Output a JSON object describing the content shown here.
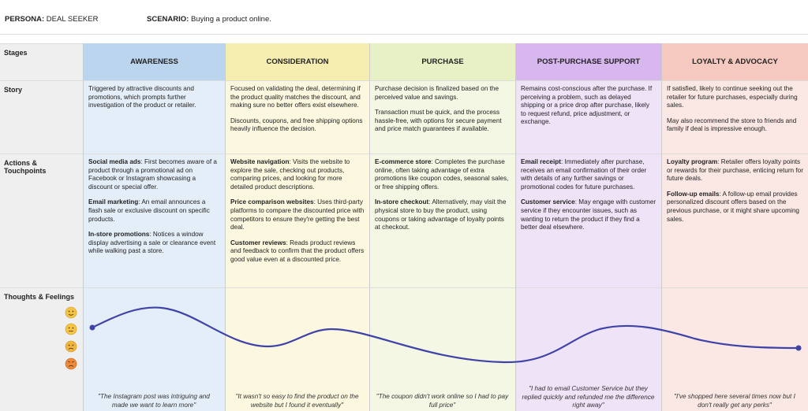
{
  "header": {
    "persona_label": "PERSONA:",
    "persona": "DEAL SEEKER",
    "scenario_label": "SCENARIO:",
    "scenario": "Buying a product online."
  },
  "row_labels": [
    "Stages",
    "Story",
    "Actions & Touchpoints",
    "Thoughts & Feelings"
  ],
  "stages": [
    {
      "name": "AWARENESS",
      "story": [
        "Triggered by attractive discounts and promotions, which prompts further investigation of the product or retailer."
      ],
      "actions": [
        {
          "label": "Social media ads",
          "text": ": First becomes aware of a product through a promotional ad on Facebook or Instagram showcasing a discount or special offer."
        },
        {
          "label": "Email marketing",
          "text": ": An email announces a flash sale or exclusive discount on specific products."
        },
        {
          "label": "In-store promotions",
          "text": ": Notices a window display advertising a sale or clearance event while walking past a store."
        }
      ],
      "quote": "\"The Instagram post was intriguing and made we want to learn more\""
    },
    {
      "name": "CONSIDERATION",
      "story": [
        "Focused on validating the deal, determining if the product quality matches the discount, and making sure no better offers exist elsewhere.",
        "Discounts, coupons, and free shipping options heavily influence the decision."
      ],
      "actions": [
        {
          "label": "Website navigation",
          "text": ": Visits the website to explore the sale, checking out products, comparing prices, and looking for more detailed product descriptions."
        },
        {
          "label": "Price comparison websites",
          "text": ": Uses third-party platforms to compare the discounted price with competitors to ensure they're getting the best deal."
        },
        {
          "label": "Customer reviews",
          "text": ": Reads product reviews and feedback to confirm that the product offers good value even at a discounted price."
        }
      ],
      "quote": "\"It wasn't so easy to find the product on the website but I found it eventually\""
    },
    {
      "name": "PURCHASE",
      "story": [
        "Purchase decision is finalized based on the perceived value and savings.",
        "Transaction must be quick, and the process hassle-free, with options for secure payment and price match guarantees if available."
      ],
      "actions": [
        {
          "label": "E-commerce store",
          "text": ": Completes the purchase online, often taking advantage of extra promotions like coupon codes, seasonal sales, or free shipping offers."
        },
        {
          "label": "In-store checkout",
          "text": ": Alternatively, may visit the physical store to buy the product, using coupons or taking advantage of loyalty points at checkout."
        }
      ],
      "quote": "\"The coupon didn't work online so I had to pay full price\""
    },
    {
      "name": "POST-PURCHASE SUPPORT",
      "story": [
        "Remains cost-conscious after the purchase. If perceiving a problem, such as delayed shipping or a price drop after purchase, likely to request refund, price adjustment, or exchange."
      ],
      "actions": [
        {
          "label": "Email receipt",
          "text": ": Immediately after purchase, receives an email confirmation of their order with details of any further savings or promotional codes for future purchases."
        },
        {
          "label": "Customer service",
          "text": ": May engage with customer service if they encounter issues, such as wanting to return the product if they find a better deal elsewhere."
        }
      ],
      "quote": "\"I had to email Customer Service but they replied quickly and refunded me the difference right away\""
    },
    {
      "name": "LOYALTY & ADVOCACY",
      "story": [
        "If satisfied, likely to continue seeking out the retailer for future purchases, especially during sales.",
        "May also recommend the store to friends and family if deal is impressive enough."
      ],
      "actions": [
        {
          "label": "Loyalty program",
          "text": ": Retailer offers loyalty points or rewards for their purchase, enticing return for future deals."
        },
        {
          "label": "Follow-up emails",
          "text": ": A follow-up email provides personalized discount offers based on the previous purchase, or it might share upcoming sales."
        }
      ],
      "quote": "\"I've shopped here several times now but I don't really get any perks\""
    }
  ]
}
